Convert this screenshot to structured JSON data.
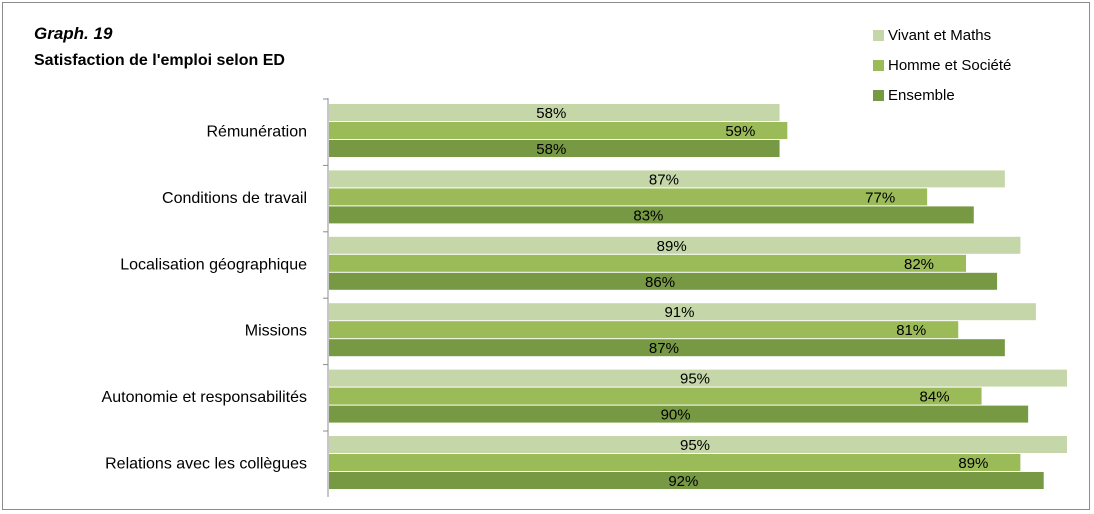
{
  "chart_data": {
    "type": "bar",
    "orientation": "horizontal",
    "title": "Graph. 19",
    "subtitle": "Satisfaction de l'emploi selon ED",
    "categories": [
      "Rémunération",
      "Conditions de travail",
      "Localisation géographique",
      "Missions",
      "Autonomie et responsabilités",
      "Relations avec les collègues"
    ],
    "series": [
      {
        "name": "Vivant et Maths",
        "color": "#c5d7a8",
        "values": [
          58,
          87,
          89,
          91,
          95,
          95
        ],
        "labels": [
          "58%",
          "87%",
          "89%",
          "91%",
          "95%",
          "95%"
        ]
      },
      {
        "name": "Homme et Société",
        "color": "#9bbb59",
        "values": [
          59,
          77,
          82,
          81,
          84,
          89
        ],
        "labels": [
          "59%",
          "77%",
          "82%",
          "81%",
          "84%",
          "89%"
        ]
      },
      {
        "name": "Ensemble",
        "color": "#779944",
        "values": [
          58,
          83,
          86,
          87,
          90,
          92
        ],
        "labels": [
          "58%",
          "83%",
          "86%",
          "87%",
          "90%",
          "92%"
        ]
      }
    ],
    "xlim": [
      0,
      95
    ],
    "legend_position": "top-right",
    "grid": false
  }
}
